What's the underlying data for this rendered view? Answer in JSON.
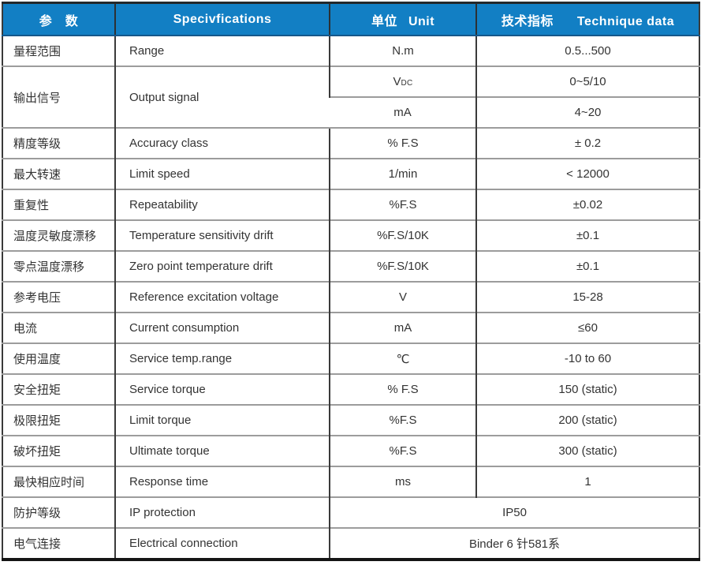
{
  "header": {
    "param": "参　数",
    "spec": "Specivfications",
    "unit_cn": "单位",
    "unit_en": "Unit",
    "tech_cn": "技术指标",
    "tech_en": "Technique data"
  },
  "colors": {
    "header_bg": "#127FC4",
    "header_text": "#ffffff",
    "row_separator": "#9c9c9c",
    "column_line": "#3a3a3a",
    "bottom_bar": "#141414"
  },
  "rows": {
    "range": {
      "param": "量程范围",
      "spec": "Range",
      "unit": "N.m",
      "value": "0.5...500"
    },
    "output": {
      "param": "输出信号",
      "spec": "Output signal",
      "sub1": {
        "unit_main": "V",
        "unit_sub": "DC",
        "value": "0~5/10"
      },
      "sub2": {
        "unit": "mA",
        "value": "4~20"
      }
    },
    "accuracy": {
      "param": "精度等级",
      "spec": "Accuracy class",
      "unit": "% F.S",
      "value": "± 0.2"
    },
    "limit_speed": {
      "param": "最大转速",
      "spec": "Limit speed",
      "unit": "1/min",
      "value": "< 12000"
    },
    "repeatability": {
      "param": "重复性",
      "spec": "Repeatability",
      "unit": "%F.S",
      "value": "±0.02"
    },
    "temp_drift": {
      "param": "温度灵敏度漂移",
      "spec": "Temperature sensitivity drift",
      "unit": "%F.S/10K",
      "value": "±0.1"
    },
    "zero_drift": {
      "param": "零点温度漂移",
      "spec": "Zero point temperature drift",
      "unit": "%F.S/10K",
      "value": "±0.1"
    },
    "ref_voltage": {
      "param": "参考电压",
      "spec": "Reference excitation voltage",
      "unit": "V",
      "value": "15-28"
    },
    "current": {
      "param": "电流",
      "spec": "Current consumption",
      "unit": "mA",
      "value": "≤60"
    },
    "service_temp": {
      "param": "使用温度",
      "spec": "Service temp.range",
      "unit": "℃",
      "value": "-10 to 60"
    },
    "service_torque": {
      "param": "安全扭矩",
      "spec": "Service torque",
      "unit": "% F.S",
      "value": "150 (static)"
    },
    "limit_torque": {
      "param": "极限扭矩",
      "spec": "Limit torque",
      "unit": "%F.S",
      "value": "200 (static)"
    },
    "ultimate_torque": {
      "param": "破坏扭矩",
      "spec": "Ultimate torque",
      "unit": "%F.S",
      "value": "300 (static)"
    },
    "response_time": {
      "param": "最快相应时间",
      "spec": "Response time",
      "unit": "ms",
      "value": "1"
    },
    "ip": {
      "param": "防护等级",
      "spec": "IP protection",
      "value": "IP50"
    },
    "electrical": {
      "param": "电气连接",
      "spec": "Electrical connection",
      "value": "Binder 6 针581系"
    }
  }
}
